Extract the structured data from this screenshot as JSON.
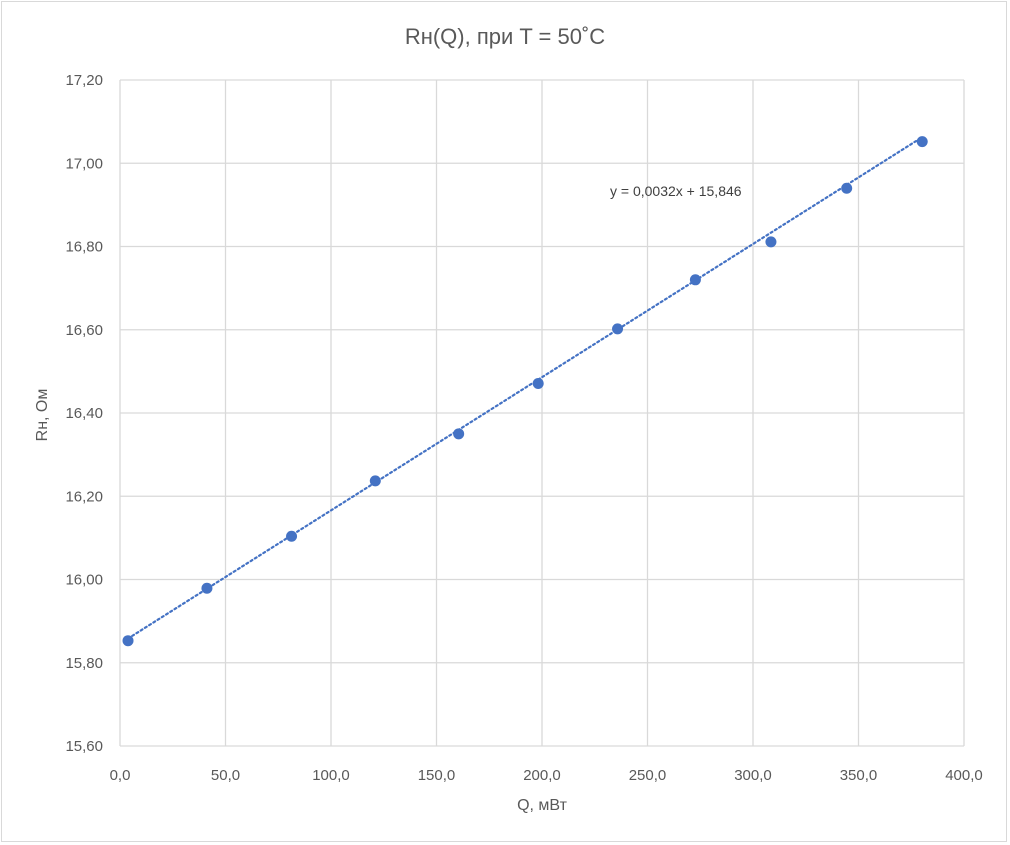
{
  "chart_data": {
    "type": "scatter",
    "title": "Rн(Q), при T = 50˚C",
    "xlabel": "Q, мВт",
    "ylabel": "Rн, Ом",
    "xlim": [
      0,
      400
    ],
    "ylim": [
      15.6,
      17.2
    ],
    "x_ticks": [
      "0,0",
      "50,0",
      "100,0",
      "150,0",
      "200,0",
      "250,0",
      "300,0",
      "350,0",
      "400,0"
    ],
    "y_ticks": [
      "15,60",
      "15,80",
      "16,00",
      "16,20",
      "16,40",
      "16,60",
      "16,80",
      "17,00",
      "17,20"
    ],
    "grid": true,
    "legend": "none",
    "series": [
      {
        "color": "#4472c4",
        "x": [
          3.8,
          41.2,
          81.3,
          121.0,
          160.5,
          198.2,
          235.8,
          272.7,
          308.5,
          344.4,
          380.2
        ],
        "y": [
          15.853,
          15.979,
          16.104,
          16.237,
          16.35,
          16.471,
          16.602,
          16.72,
          16.811,
          16.94,
          17.052
        ]
      }
    ],
    "trendline": {
      "type": "linear",
      "style": "dotted",
      "color": "#4472c4",
      "slope": 0.0032,
      "intercept": 15.846,
      "equation": "y = 0,0032x + 15,846"
    }
  }
}
